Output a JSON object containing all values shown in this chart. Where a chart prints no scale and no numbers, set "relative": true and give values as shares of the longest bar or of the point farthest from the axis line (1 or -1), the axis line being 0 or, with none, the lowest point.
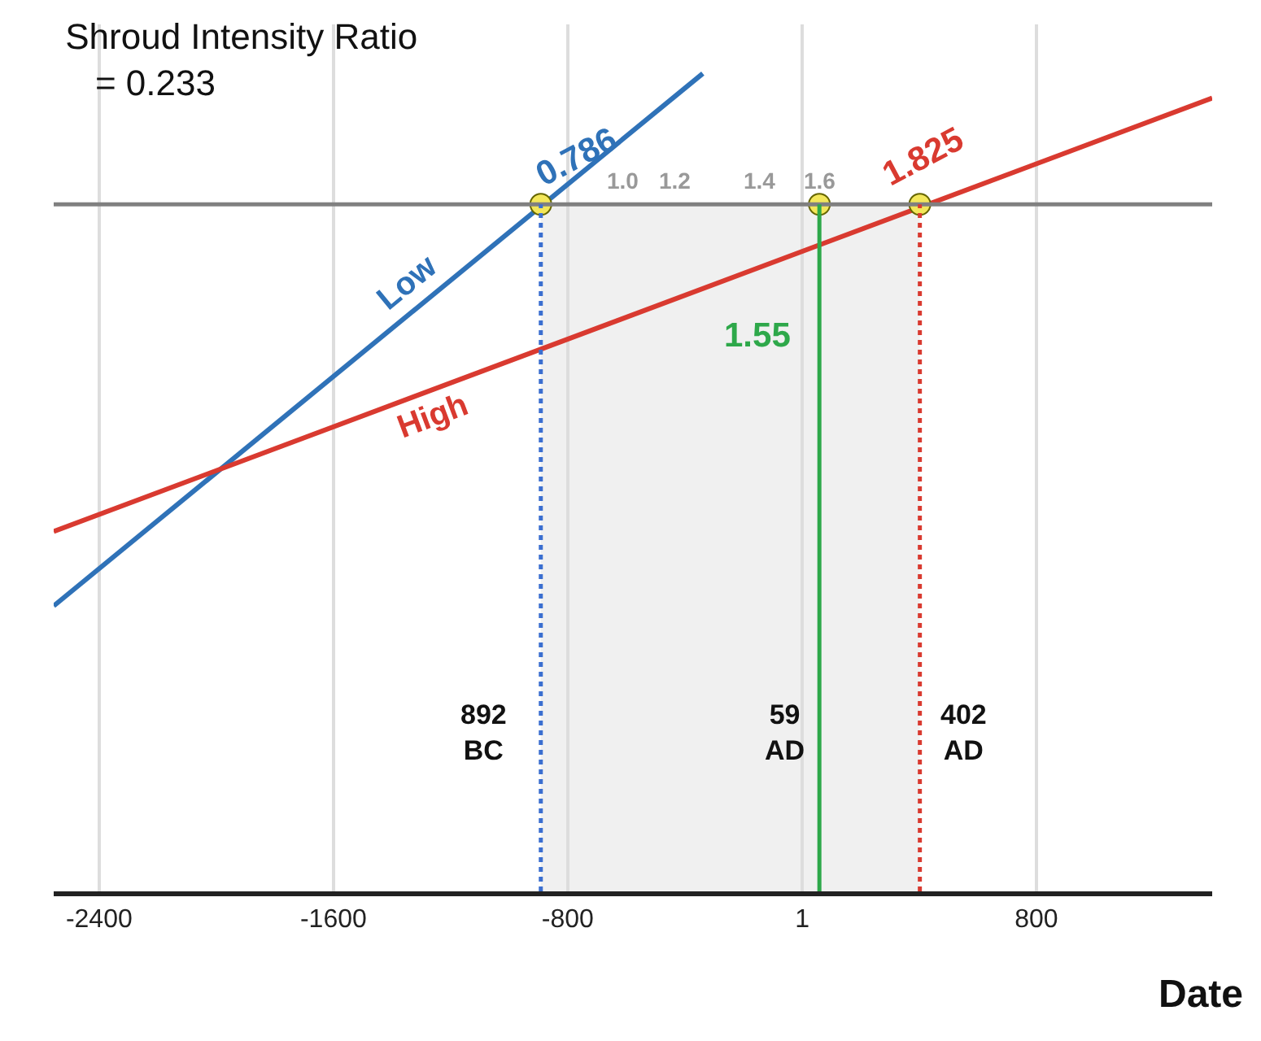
{
  "chart_data": {
    "type": "line",
    "title": "Shroud Intensity Ratio\n   = 0.233",
    "xlabel": "Date",
    "relative": true,
    "xlim": [
      -2555,
      1400
    ],
    "xticks": [
      -2400,
      -1600,
      -800,
      1,
      800
    ],
    "grid": "x",
    "marker": "none",
    "line_style": "solid",
    "series": [
      {
        "name": "Low",
        "color": "#2f72b8",
        "x": [
          -2555,
          -339
        ],
        "values": [
          0.349,
          1
        ]
      },
      {
        "name": "High",
        "color": "#d93a30",
        "x": [
          -2555,
          1400
        ],
        "values": [
          0.44,
          0.97
        ]
      },
      {
        "type": "scatter",
        "marker": "circle",
        "color": "#f3e75a",
        "x": [
          -892,
          59,
          402
        ],
        "values": [
          0.84,
          0.84,
          0.84
        ]
      }
    ],
    "ref_lines": [
      {
        "axis": "y",
        "value": 0.84,
        "color": "#808080",
        "line_style": "solid"
      },
      {
        "axis": "x",
        "value": -892,
        "color": "#3b6fd0",
        "line_style": "dotted"
      },
      {
        "axis": "x",
        "value": 59,
        "color": "#2ea84a",
        "line_style": "solid"
      },
      {
        "axis": "x",
        "value": 402,
        "color": "#d93a30",
        "line_style": "dotted"
      }
    ],
    "bands": [
      {
        "axis": "x",
        "from": -892,
        "to": 402,
        "color": "#f0f0f0"
      }
    ],
    "annotations": [
      "0.786",
      "1.825",
      "1.55",
      "1.0",
      "1.2",
      "1.4",
      "1.6",
      "892\nBC",
      "59\nAD",
      "402\nAD"
    ]
  }
}
